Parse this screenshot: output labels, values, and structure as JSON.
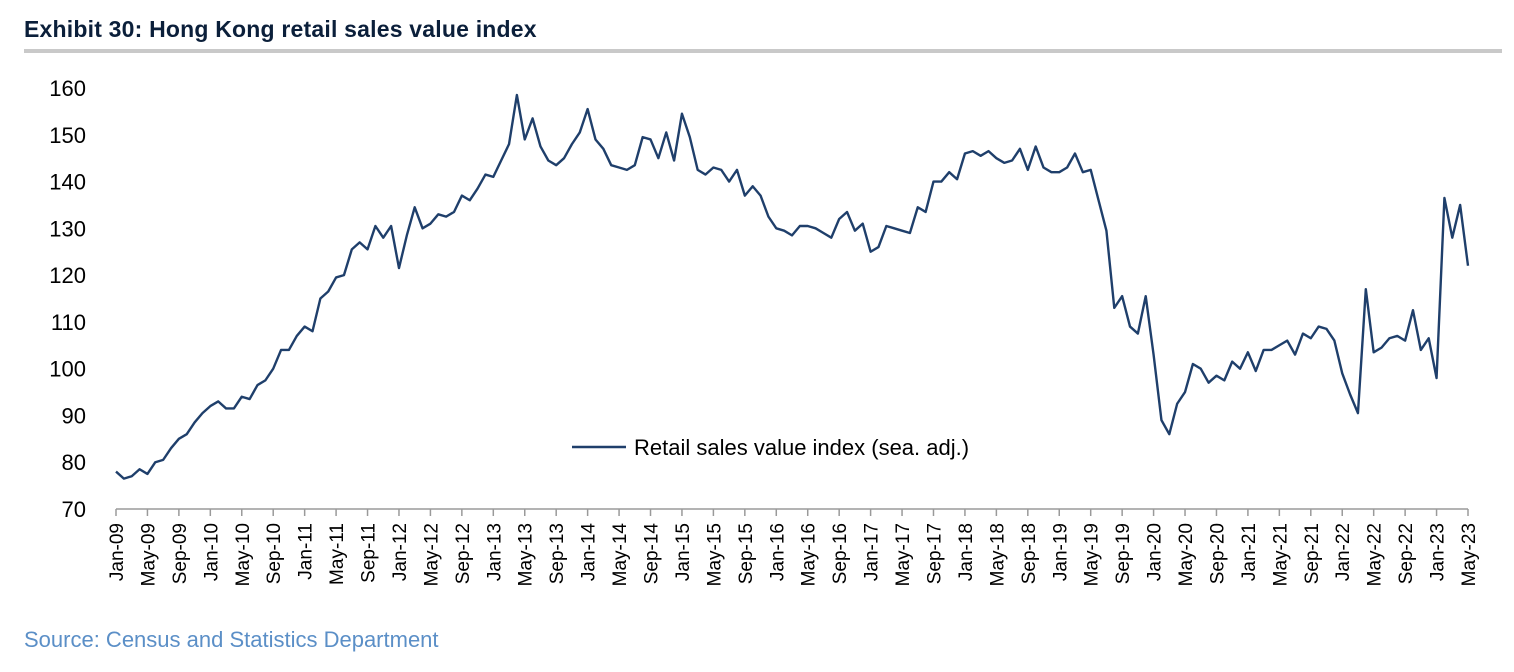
{
  "header": {
    "title": "Exhibit 30: Hong Kong retail sales value index"
  },
  "footer": {
    "source": "Source: Census and Statistics  Department"
  },
  "colors": {
    "series": "#1f3f6b",
    "axis": "#9a9a9a",
    "source": "#5b8fc7"
  },
  "chart_data": {
    "type": "line",
    "title": "Exhibit 30: Hong Kong retail sales value index",
    "xlabel": "",
    "ylabel": "",
    "ylim": [
      70,
      160
    ],
    "yticks": [
      70,
      80,
      90,
      100,
      110,
      120,
      130,
      140,
      150,
      160
    ],
    "grid": false,
    "legend": {
      "position": "center-left",
      "entries": [
        "Retail sales value index (sea. adj.)"
      ]
    },
    "x_start": "Jan-09",
    "x_end": "May-23",
    "frequency": "monthly",
    "xtick_labels": [
      "Jan-09",
      "May-09",
      "Sep-09",
      "Jan-10",
      "May-10",
      "Sep-10",
      "Jan-11",
      "May-11",
      "Sep-11",
      "Jan-12",
      "May-12",
      "Sep-12",
      "Jan-13",
      "May-13",
      "Sep-13",
      "Jan-14",
      "May-14",
      "Sep-14",
      "Jan-15",
      "May-15",
      "Sep-15",
      "Jan-16",
      "May-16",
      "Sep-16",
      "Jan-17",
      "May-17",
      "Sep-17",
      "Jan-18",
      "May-18",
      "Sep-18",
      "Jan-19",
      "May-19",
      "Sep-19",
      "Jan-20",
      "May-20",
      "Sep-20",
      "Jan-21",
      "May-21",
      "Sep-21",
      "Jan-22",
      "May-22",
      "Sep-22",
      "Jan-23",
      "May-23"
    ],
    "series": [
      {
        "name": "Retail sales value index (sea. adj.)",
        "values": [
          78,
          76.5,
          77,
          78.5,
          77.5,
          80,
          80.5,
          83,
          85,
          86,
          88.5,
          90.5,
          92,
          93,
          91.5,
          91.5,
          94,
          93.5,
          96.5,
          97.5,
          100,
          104,
          104,
          107,
          109,
          108,
          115,
          116.5,
          119.5,
          120,
          125.5,
          127,
          125.5,
          130.5,
          128,
          130.5,
          121.5,
          128.5,
          134.5,
          130,
          131,
          133,
          132.5,
          133.5,
          137,
          136,
          138.5,
          141.5,
          141,
          144.5,
          148,
          158.5,
          149,
          153.5,
          147.5,
          144.5,
          143.5,
          145,
          148,
          150.5,
          155.5,
          149,
          147,
          143.5,
          143,
          142.5,
          143.5,
          149.5,
          149,
          145,
          150.5,
          144.5,
          154.5,
          149.5,
          142.5,
          141.5,
          143,
          142.5,
          140,
          142.5,
          137,
          139,
          137,
          132.5,
          130,
          129.5,
          128.5,
          130.5,
          130.5,
          130,
          129,
          128,
          132,
          133.5,
          129.5,
          131,
          125,
          126,
          130.5,
          130,
          129.5,
          129,
          134.5,
          133.5,
          140,
          140,
          142,
          140.5,
          146,
          146.5,
          145.5,
          146.5,
          145,
          144,
          144.5,
          147,
          142.5,
          147.5,
          143,
          142,
          142,
          143,
          146,
          142,
          142.5,
          136,
          129.5,
          113,
          115.5,
          109,
          107.5,
          115.5,
          103,
          89,
          86,
          92.5,
          95,
          101,
          100,
          97,
          98.5,
          97.5,
          101.5,
          100,
          103.5,
          99.5,
          104,
          104,
          105,
          106,
          103,
          107.5,
          106.5,
          109,
          108.5,
          106,
          99,
          94.5,
          90.5,
          117,
          103.5,
          104.5,
          106.5,
          107,
          106,
          112.5,
          104,
          106.5,
          98,
          136.5,
          128,
          135,
          122
        ]
      }
    ]
  }
}
